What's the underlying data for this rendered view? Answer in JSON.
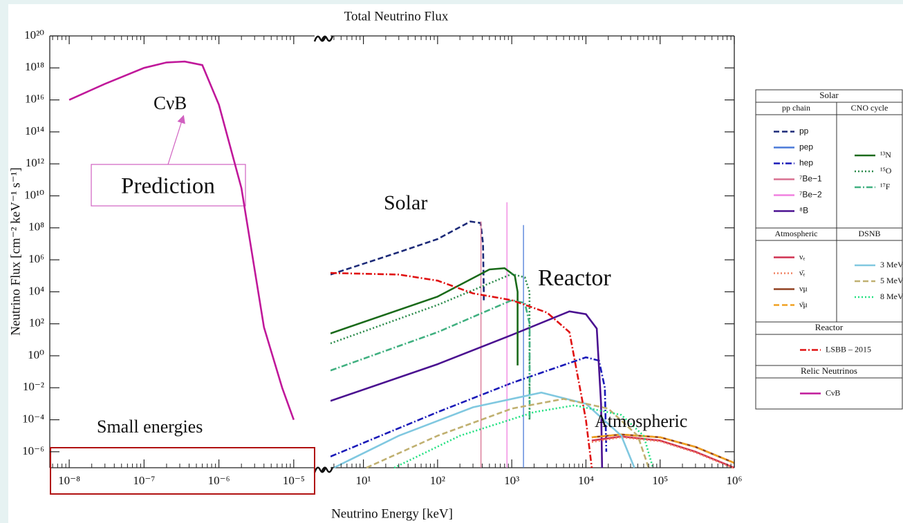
{
  "chart_data": {
    "type": "line",
    "title": "Total Neutrino Flux",
    "xlabel": "Neutrino Energy [keV]",
    "ylabel": "Neutrino Flux [cm⁻² keV⁻¹ s⁻¹]",
    "log_x": true,
    "log_y": true,
    "panels": [
      {
        "xlim": [
          5.5e-09,
          1.9e-05
        ],
        "xticks": [
          {
            "value": 1e-08,
            "label": "10⁻⁸"
          },
          {
            "value": 1e-07,
            "label": "10⁻⁷"
          },
          {
            "value": 1e-06,
            "label": "10⁻⁶"
          },
          {
            "value": 1e-05,
            "label": "10⁻⁵"
          }
        ]
      },
      {
        "xlim": [
          3.6,
          1000000
        ],
        "xticks": [
          {
            "value": 10,
            "label": "10¹"
          },
          {
            "value": 100,
            "label": "10²"
          },
          {
            "value": 1000,
            "label": "10³"
          },
          {
            "value": 10000,
            "label": "10⁴"
          },
          {
            "value": 100000,
            "label": "10⁵"
          },
          {
            "value": 1000000,
            "label": "10⁶"
          }
        ]
      }
    ],
    "ylim": [
      1e-07,
      1e+20
    ],
    "yticks": [
      {
        "value": 1e+20,
        "label": "10²⁰"
      },
      {
        "value": 1e+18,
        "label": "10¹⁸"
      },
      {
        "value": 1e+16,
        "label": "10¹⁶"
      },
      {
        "value": 100000000000000.0,
        "label": "10¹⁴"
      },
      {
        "value": 1000000000000.0,
        "label": "10¹²"
      },
      {
        "value": 10000000000.0,
        "label": "10¹⁰"
      },
      {
        "value": 100000000.0,
        "label": "10⁸"
      },
      {
        "value": 1000000.0,
        "label": "10⁶"
      },
      {
        "value": 10000.0,
        "label": "10⁴"
      },
      {
        "value": 100,
        "label": "10²"
      },
      {
        "value": 1,
        "label": "10⁰"
      },
      {
        "value": 0.01,
        "label": "10⁻²"
      },
      {
        "value": 0.0001,
        "label": "10⁻⁴"
      },
      {
        "value": 1e-06,
        "label": "10⁻⁶"
      }
    ],
    "groups": [
      {
        "title": "Solar",
        "columns": [
          {
            "title": "pp chain",
            "series": [
              {
                "name": "pp",
                "color": "#1c2a78",
                "style": "dashed",
                "panel": 1,
                "x": [
                  3.6,
                  30,
                  100,
                  277,
                  380,
                  410,
                  420,
                  420
                ],
                "values": [
                  120000,
                  3000000,
                  20000000,
                  250000000,
                  200000000,
                  10000000,
                  10000,
                  2000
                ]
              },
              {
                "name": "pep",
                "color": "#4a7ad8",
                "style": "solid",
                "panel": 1,
                "x": [
                  1440,
                  1440
                ],
                "values": [
                  1e-07,
                  150000000
                ]
              },
              {
                "name": "hep",
                "color": "#1a1ab8",
                "style": "dashdot",
                "panel": 1,
                "x": [
                  3.6,
                  100,
                  1000,
                  10000,
                  15000,
                  18000,
                  18800
                ],
                "values": [
                  5e-07,
                  0.0003,
                  0.02,
                  0.8,
                  0.5,
                  0.01,
                  1e-06
                ]
              },
              {
                "name": "⁷Be−1",
                "color": "#d87090",
                "style": "solid",
                "panel": 1,
                "x": [
                  384,
                  384
                ],
                "values": [
                  1e-07,
                  250000000
                ]
              },
              {
                "name": "⁷Be−2",
                "color": "#f080e0",
                "style": "solid",
                "panel": 1,
                "x": [
                  862,
                  862
                ],
                "values": [
                  1e-07,
                  4000000000
                ]
              },
              {
                "name": "⁸B",
                "color": "#4a1090",
                "style": "solid",
                "panel": 1,
                "x": [
                  3.6,
                  100,
                  1000,
                  6000,
                  10000,
                  14000,
                  16000,
                  16500
                ],
                "values": [
                  0.0015,
                  0.3,
                  20,
                  600,
                  400,
                  50,
                  0.001,
                  1e-07
                ]
              }
            ]
          },
          {
            "title": "CNO cycle",
            "series": [
              {
                "name": "¹³N",
                "color": "#1a6a1a",
                "style": "solid",
                "panel": 1,
                "x": [
                  3.6,
                  100,
                  500,
                  800,
                  1100,
                  1199,
                  1199
                ],
                "values": [
                  25,
                  5000,
                  250000,
                  300000,
                  100000,
                  10000,
                  0.25
                ]
              },
              {
                "name": "¹⁵O",
                "color": "#2a8a4a",
                "style": "dotted",
                "panel": 1,
                "x": [
                  3.6,
                  100,
                  1000,
                  1500,
                  1732,
                  1732
                ],
                "values": [
                  6,
                  1500,
                  130000,
                  80000,
                  10000,
                  0.0001
                ]
              },
              {
                "name": "¹⁷F",
                "color": "#40b080",
                "style": "dashdot",
                "panel": 1,
                "x": [
                  3.6,
                  100,
                  1000,
                  1500,
                  1740,
                  1740
                ],
                "values": [
                  0.12,
                  30,
                  3000,
                  2000,
                  100,
                  0.0001
                ]
              }
            ]
          }
        ]
      },
      {
        "columns": [
          {
            "title": "Atmospheric",
            "series": [
              {
                "name": "νₑ",
                "color": "#d03050",
                "style": "solid",
                "panel": 1,
                "x": [
                  12000,
                  30000,
                  100000,
                  300000,
                  1000000
                ],
                "values": [
                  5e-06,
                  9e-06,
                  5e-06,
                  1e-06,
                  1e-07
                ]
              },
              {
                "name": "ν̄ₑ",
                "color": "#f08060",
                "style": "dotted",
                "panel": 1,
                "x": [
                  12000,
                  30000,
                  100000,
                  300000,
                  1000000
                ],
                "values": [
                  4e-06,
                  8e-06,
                  4.5e-06,
                  9e-07,
                  9e-08
                ]
              },
              {
                "name": "νμ",
                "color": "#904020",
                "style": "solid",
                "panel": 1,
                "x": [
                  12000,
                  30000,
                  100000,
                  300000,
                  1000000
                ],
                "values": [
                  8e-06,
                  1.2e-05,
                  8e-06,
                  2e-06,
                  2e-07
                ]
              },
              {
                "name": "ν̄μ",
                "color": "#f0a020",
                "style": "dashed",
                "panel": 1,
                "x": [
                  12000,
                  30000,
                  100000,
                  300000,
                  1000000
                ],
                "values": [
                  8e-06,
                  1.2e-05,
                  8e-06,
                  2e-06,
                  2e-07
                ]
              }
            ]
          },
          {
            "title": "DSNB",
            "series": [
              {
                "name": "3 MeV",
                "color": "#80c8e0",
                "style": "solid",
                "panel": 1,
                "x": [
                  4,
                  30,
                  300,
                  2500,
                  10000,
                  30000,
                  45000
                ],
                "values": [
                  1e-07,
                  1e-05,
                  0.0006,
                  0.005,
                  0.001,
                  1e-05,
                  1e-07
                ]
              },
              {
                "name": "5 MeV",
                "color": "#c0b070",
                "style": "dashed",
                "panel": 1,
                "x": [
                  11,
                  100,
                  1000,
                  5000,
                  20000,
                  50000,
                  70000
                ],
                "values": [
                  1e-07,
                  1e-05,
                  0.0005,
                  0.002,
                  0.0005,
                  1e-05,
                  1e-07
                ]
              },
              {
                "name": "8 MeV",
                "color": "#20e080",
                "style": "dotted",
                "panel": 1,
                "x": [
                  26,
                  200,
                  2000,
                  7000,
                  30000,
                  60000,
                  80000
                ],
                "values": [
                  1e-07,
                  1e-05,
                  0.0003,
                  0.0008,
                  0.0002,
                  1e-05,
                  1e-07
                ]
              }
            ]
          }
        ]
      },
      {
        "title": "Reactor",
        "columns": [
          {
            "series": [
              {
                "name": "LSBB – 2015",
                "color": "#e01010",
                "style": "dashdot",
                "panel": 1,
                "x": [
                  3.6,
                  30,
                  100,
                  300,
                  1000,
                  3000,
                  6000,
                  10000,
                  12000
                ],
                "values": [
                  150000,
                  120000,
                  50000,
                  8000,
                  3000,
                  500,
                  30,
                  0.0001,
                  1e-07
                ]
              }
            ]
          }
        ]
      },
      {
        "title": "Relic Neutrinos",
        "columns": [
          {
            "series": [
              {
                "name": "CνB",
                "color": "#c0189a",
                "style": "solid",
                "panel": 0,
                "x": [
                  1e-08,
                  3e-08,
                  1e-07,
                  2e-07,
                  3.5e-07,
                  6e-07,
                  1e-06,
                  2e-06,
                  4e-06,
                  7e-06,
                  1e-05
                ],
                "values": [
                  1e+16,
                  1e+17,
                  1e+18,
                  2.2e+18,
                  2.5e+18,
                  1.5e+18,
                  5000000000000000.0,
                  30000000000.0,
                  60,
                  0.01,
                  0.0001
                ]
              }
            ]
          }
        ]
      }
    ],
    "annotations": [
      {
        "text": "CνB",
        "color": "#c0189a"
      },
      {
        "text": "Prediction",
        "color": "#d060c0"
      },
      {
        "text": "Solar",
        "color": "#2a3a6a"
      },
      {
        "text": "Reactor",
        "color": "#ee1010"
      },
      {
        "text": "Atmospheric",
        "color": "#8a7010"
      },
      {
        "text": "Small energies",
        "color": "#b01010"
      }
    ]
  }
}
